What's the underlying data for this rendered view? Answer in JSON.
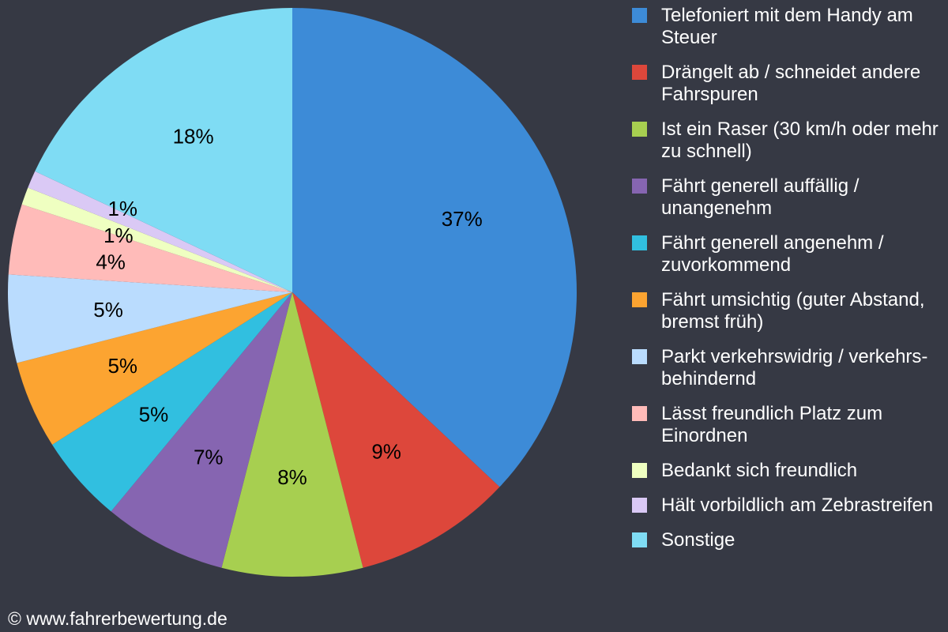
{
  "chart_data": {
    "type": "pie",
    "start_angle": "top, clockwise",
    "legend_position": "right",
    "slices": [
      {
        "label": "Telefoniert mit dem Handy am Steuer",
        "value": 37,
        "data_label": "37%",
        "color": "#3d8bd7"
      },
      {
        "label": "Drängelt ab / schneidet andere Fahrspuren",
        "value": 9,
        "data_label": "9%",
        "color": "#dd473b"
      },
      {
        "label": "Ist ein Raser (30 km/h oder mehr zu schnell)",
        "value": 8,
        "data_label": "8%",
        "color": "#a7cf50"
      },
      {
        "label": "Fährt generell auffällig / unangenehm",
        "value": 7,
        "data_label": "7%",
        "color": "#8665b1"
      },
      {
        "label": "Fährt generell angenehm / zuvorkommend",
        "value": 5,
        "data_label": "5%",
        "color": "#31bfe0"
      },
      {
        "label": "Fährt umsichtig (guter Abstand, bremst früh)",
        "value": 5,
        "data_label": "5%",
        "color": "#fca431"
      },
      {
        "label": "Parkt verkehrswidrig / verkehrs-behindernd",
        "value": 5,
        "data_label": "5%",
        "color": "#badcfe"
      },
      {
        "label": "Lässt freundlich Platz zum Einordnen",
        "value": 4,
        "data_label": "4%",
        "color": "#ffbbb9"
      },
      {
        "label": "Bedankt sich freundlich",
        "value": 1,
        "data_label": "1%",
        "color": "#efffc1"
      },
      {
        "label": "Hält vorbildlich am Zebrastreifen",
        "value": 1,
        "data_label": "1%",
        "color": "#dac9f5"
      },
      {
        "label": "Sonstige",
        "value": 18,
        "data_label": "18%",
        "color": "#7fdcf4"
      }
    ]
  },
  "footer": "© www.fahrerbewertung.de"
}
